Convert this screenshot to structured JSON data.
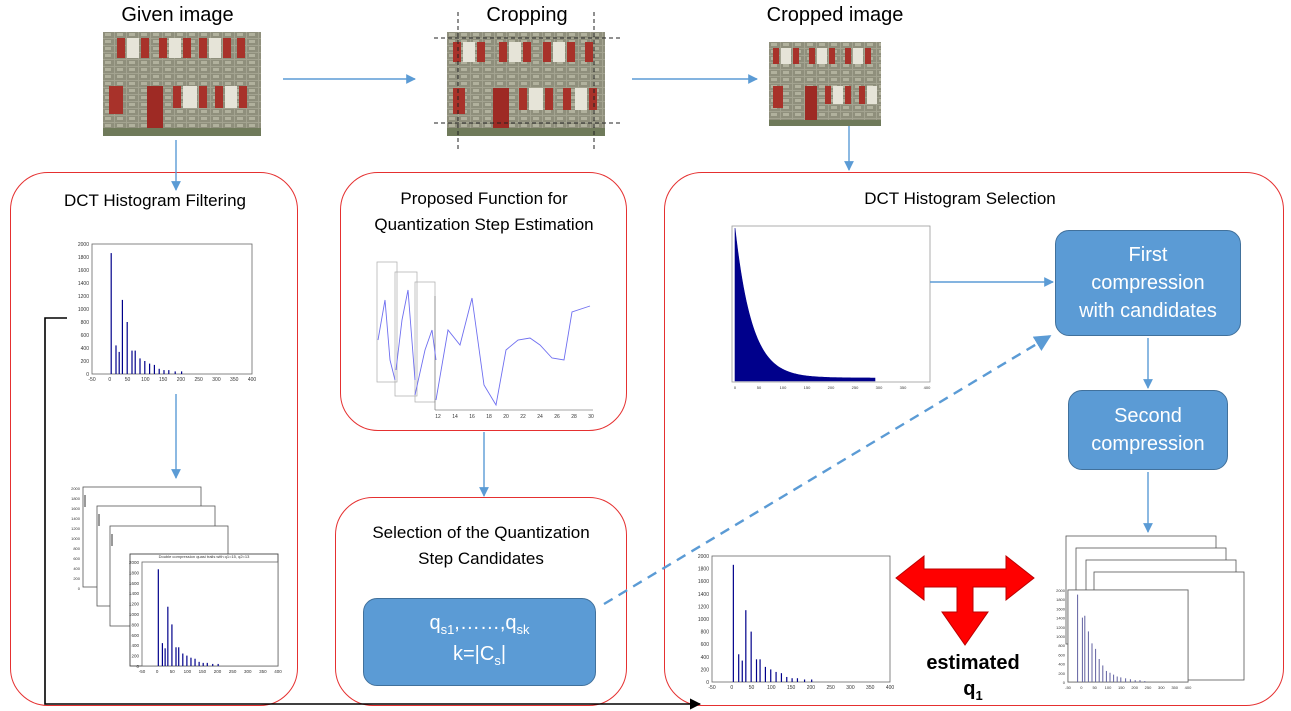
{
  "top": {
    "given_label": "Given image",
    "cropping_label": "Cropping",
    "cropped_label": "Cropped image"
  },
  "boxes": {
    "filtering_title": "DCT Histogram  Filtering",
    "proposed_title_1": "Proposed Function for",
    "proposed_title_2": "Quantization Step Estimation",
    "selection_cand_title_1": "Selection of the Quantization",
    "selection_cand_title_2": "Step Candidates",
    "dct_selection_title": "DCT Histogram Selection"
  },
  "candidates": {
    "q_base": "q",
    "q_sub_first": "s1",
    "dots": ",……,",
    "q_sub_last": "sk",
    "k_text": "k=|C",
    "k_sub": "s",
    "k_close": "|"
  },
  "pills": {
    "first_1": "First",
    "first_2": "compression",
    "first_3": "with candidates",
    "second_1": "Second",
    "second_2": "compression"
  },
  "estimated": {
    "word": "estimated",
    "q": "q",
    "sub": "1"
  },
  "histogram_axis": {
    "y_ticks": [
      "2000",
      "1800",
      "1600",
      "1400",
      "1200",
      "1000",
      "800",
      "600",
      "400",
      "200",
      "0"
    ],
    "x_ticks": [
      "-50",
      "0",
      "50",
      "100",
      "150",
      "200",
      "250",
      "300",
      "350",
      "400"
    ]
  },
  "stack_title": "Double compression quasi trails with q1=15, q2=13",
  "curve_ticks": [
    "12",
    "14",
    "16",
    "18",
    "20",
    "22",
    "24",
    "26",
    "28",
    "30"
  ],
  "colors": {
    "box_border": "#e53030",
    "pill_fill": "#5b9bd5",
    "arrow": "#5b9bd5",
    "double_arrow": "#ff0000",
    "hist_bar": "#00008b"
  },
  "icons": [
    "building-photo-icon",
    "double-headed-arrow-icon"
  ]
}
